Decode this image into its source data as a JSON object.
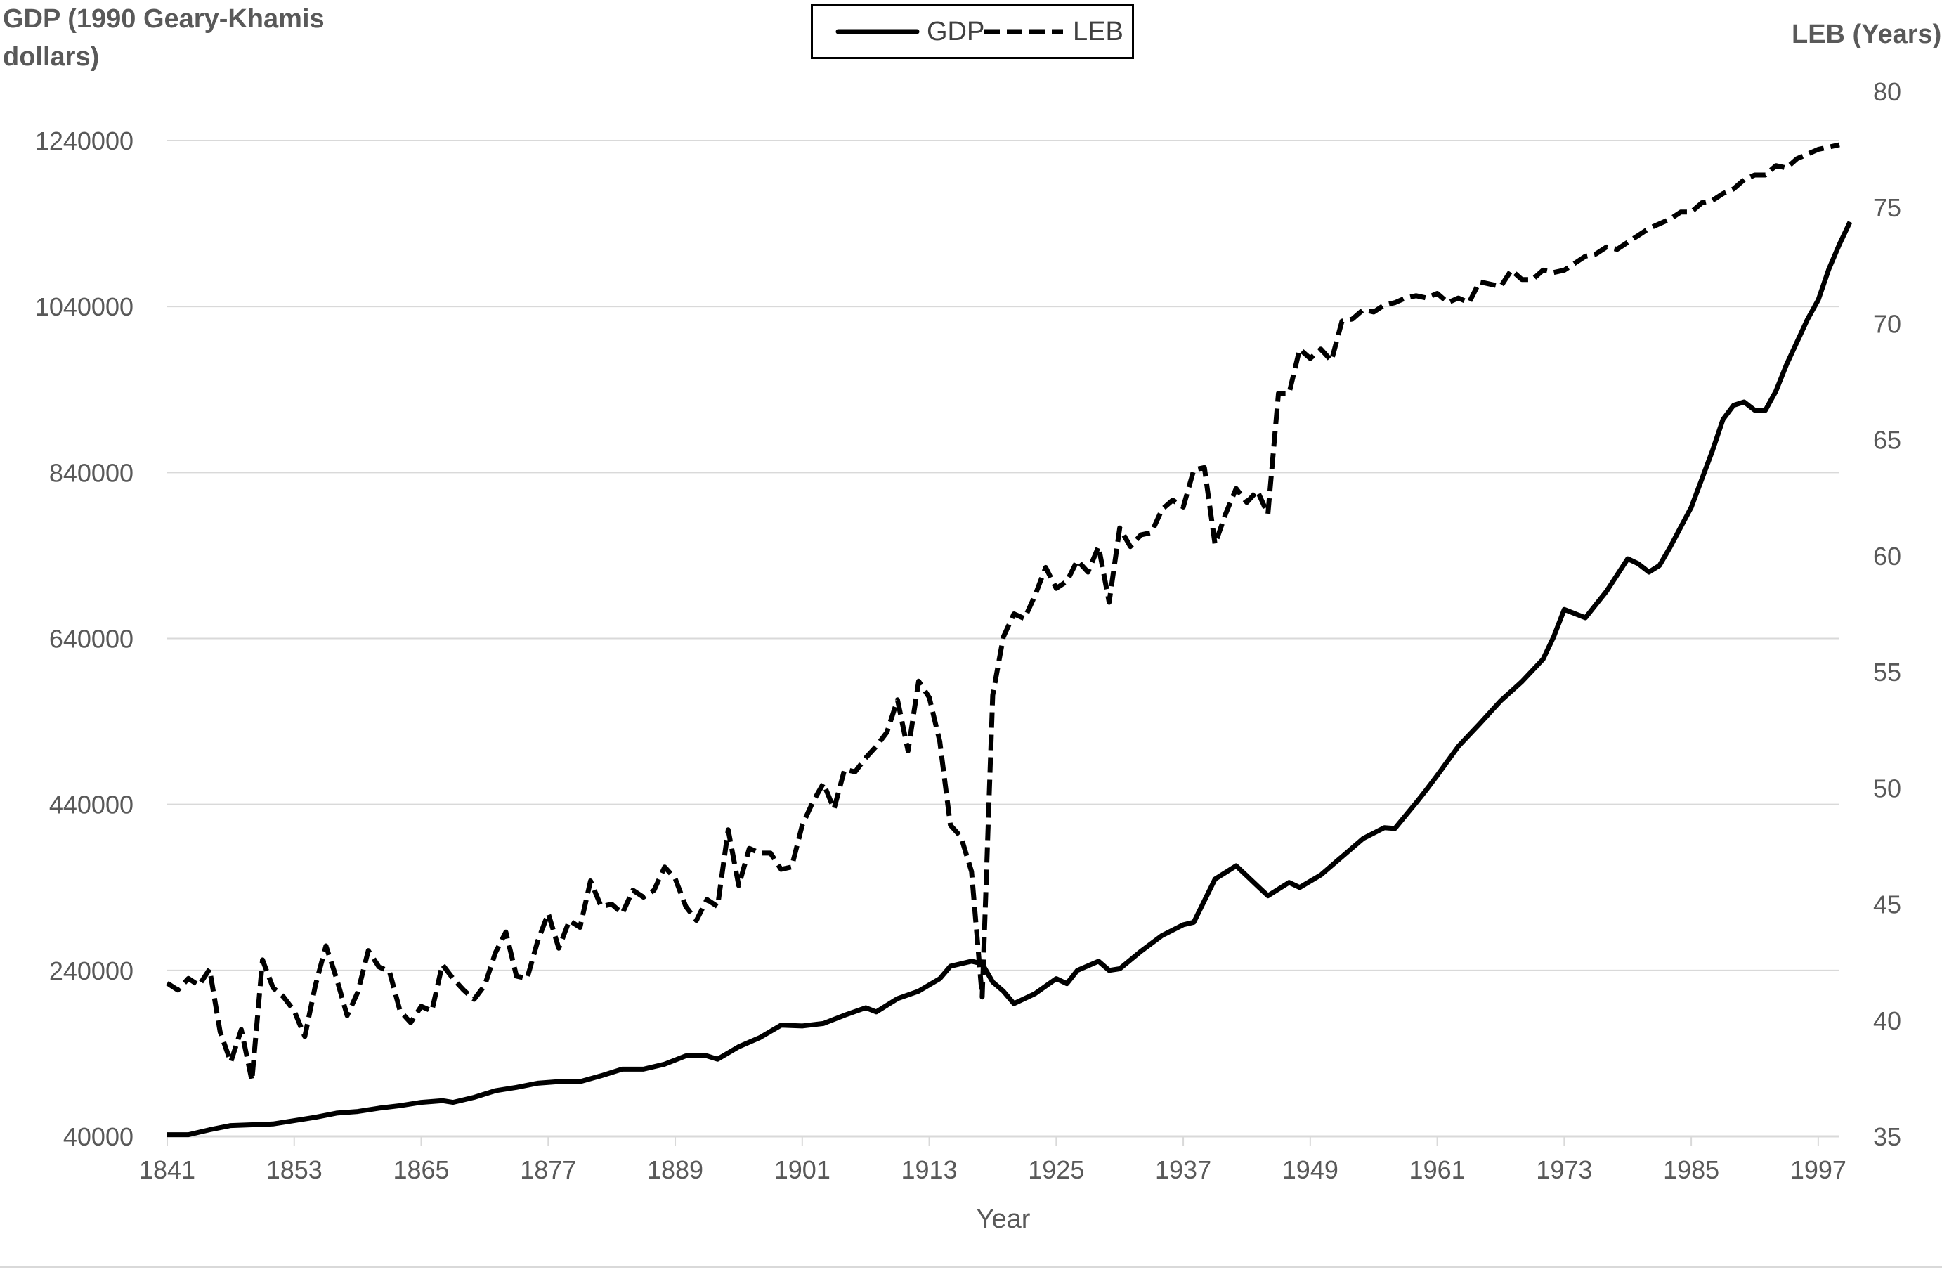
{
  "chart_data": {
    "type": "line",
    "x_label": "Year",
    "y_left_label": "GDP (1990 Geary-Khamis dollars)",
    "y_right_label": "LEB (Years)",
    "x_range": [
      1841,
      1999
    ],
    "x_ticks": [
      "1841",
      "1853",
      "1865",
      "1877",
      "1889",
      "1901",
      "1913",
      "1925",
      "1937",
      "1949",
      "1961",
      "1973",
      "1985",
      "1997"
    ],
    "y_left_range": [
      40000,
      1240000
    ],
    "y_left_ticks": [
      "40000",
      "240000",
      "440000",
      "640000",
      "840000",
      "1040000",
      "1240000"
    ],
    "y_right_range": [
      35,
      80
    ],
    "y_right_ticks": [
      "35",
      "40",
      "45",
      "50",
      "55",
      "60",
      "65",
      "70",
      "75",
      "80"
    ],
    "grid": "horizontal",
    "legend": "top-center",
    "series": [
      {
        "name": "GDP",
        "axis": "left",
        "style": "solid",
        "color": "#000000",
        "points": [
          [
            1841,
            42000
          ],
          [
            1843,
            42000
          ],
          [
            1845,
            48000
          ],
          [
            1847,
            53000
          ],
          [
            1849,
            54000
          ],
          [
            1851,
            55000
          ],
          [
            1853,
            59000
          ],
          [
            1855,
            63000
          ],
          [
            1857,
            68000
          ],
          [
            1859,
            70000
          ],
          [
            1861,
            74000
          ],
          [
            1863,
            77000
          ],
          [
            1865,
            81000
          ],
          [
            1867,
            83000
          ],
          [
            1868,
            81000
          ],
          [
            1870,
            87000
          ],
          [
            1872,
            95000
          ],
          [
            1874,
            99000
          ],
          [
            1876,
            104000
          ],
          [
            1878,
            106000
          ],
          [
            1880,
            106000
          ],
          [
            1882,
            113000
          ],
          [
            1884,
            121000
          ],
          [
            1886,
            121000
          ],
          [
            1888,
            127000
          ],
          [
            1890,
            137000
          ],
          [
            1892,
            137000
          ],
          [
            1893,
            133000
          ],
          [
            1895,
            148000
          ],
          [
            1897,
            159000
          ],
          [
            1899,
            174000
          ],
          [
            1901,
            173000
          ],
          [
            1903,
            176000
          ],
          [
            1905,
            186000
          ],
          [
            1907,
            195000
          ],
          [
            1908,
            190000
          ],
          [
            1910,
            206000
          ],
          [
            1912,
            215000
          ],
          [
            1914,
            230000
          ],
          [
            1915,
            245000
          ],
          [
            1917,
            251000
          ],
          [
            1918,
            248000
          ],
          [
            1919,
            226000
          ],
          [
            1920,
            215000
          ],
          [
            1921,
            200000
          ],
          [
            1923,
            212000
          ],
          [
            1925,
            230000
          ],
          [
            1926,
            224000
          ],
          [
            1927,
            240000
          ],
          [
            1929,
            251000
          ],
          [
            1930,
            240000
          ],
          [
            1931,
            242000
          ],
          [
            1933,
            263000
          ],
          [
            1935,
            282000
          ],
          [
            1937,
            295000
          ],
          [
            1938,
            298000
          ],
          [
            1940,
            350000
          ],
          [
            1942,
            366000
          ],
          [
            1944,
            342000
          ],
          [
            1945,
            330000
          ],
          [
            1947,
            346000
          ],
          [
            1948,
            340000
          ],
          [
            1950,
            355000
          ],
          [
            1952,
            377000
          ],
          [
            1954,
            399000
          ],
          [
            1956,
            412000
          ],
          [
            1957,
            411000
          ],
          [
            1959,
            442000
          ],
          [
            1960,
            458000
          ],
          [
            1961,
            475000
          ],
          [
            1963,
            510000
          ],
          [
            1965,
            537000
          ],
          [
            1967,
            565000
          ],
          [
            1969,
            588000
          ],
          [
            1971,
            615000
          ],
          [
            1972,
            642000
          ],
          [
            1973,
            675000
          ],
          [
            1975,
            665000
          ],
          [
            1977,
            697000
          ],
          [
            1979,
            736000
          ],
          [
            1980,
            730000
          ],
          [
            1981,
            720000
          ],
          [
            1982,
            728000
          ],
          [
            1983,
            750000
          ],
          [
            1985,
            798000
          ],
          [
            1987,
            866000
          ],
          [
            1988,
            904000
          ],
          [
            1989,
            921000
          ],
          [
            1990,
            925000
          ],
          [
            1991,
            915000
          ],
          [
            1992,
            915000
          ],
          [
            1993,
            938000
          ],
          [
            1994,
            970000
          ],
          [
            1996,
            1025000
          ],
          [
            1997,
            1048000
          ],
          [
            1998,
            1085000
          ],
          [
            1999,
            1115000
          ],
          [
            2000,
            1142000
          ]
        ]
      },
      {
        "name": "LEB",
        "axis": "right",
        "style": "dashed",
        "color": "#000000",
        "points": [
          [
            1841,
            41.6
          ],
          [
            1842,
            41.3
          ],
          [
            1843,
            41.8
          ],
          [
            1844,
            41.5
          ],
          [
            1845,
            42.2
          ],
          [
            1846,
            39.5
          ],
          [
            1847,
            38.2
          ],
          [
            1848,
            39.6
          ],
          [
            1849,
            37.4
          ],
          [
            1850,
            42.6
          ],
          [
            1851,
            41.4
          ],
          [
            1852,
            41.0
          ],
          [
            1853,
            40.4
          ],
          [
            1854,
            39.3
          ],
          [
            1855,
            41.5
          ],
          [
            1856,
            43.2
          ],
          [
            1857,
            41.8
          ],
          [
            1858,
            40.2
          ],
          [
            1859,
            41.2
          ],
          [
            1860,
            43.0
          ],
          [
            1861,
            42.3
          ],
          [
            1862,
            42.1
          ],
          [
            1863,
            40.4
          ],
          [
            1864,
            39.9
          ],
          [
            1865,
            40.6
          ],
          [
            1866,
            40.4
          ],
          [
            1867,
            42.4
          ],
          [
            1868,
            41.8
          ],
          [
            1869,
            41.3
          ],
          [
            1870,
            40.9
          ],
          [
            1871,
            41.5
          ],
          [
            1872,
            42.9
          ],
          [
            1873,
            43.8
          ],
          [
            1874,
            41.9
          ],
          [
            1875,
            41.8
          ],
          [
            1876,
            43.4
          ],
          [
            1877,
            44.6
          ],
          [
            1878,
            43.1
          ],
          [
            1879,
            44.3
          ],
          [
            1880,
            44.0
          ],
          [
            1881,
            46.0
          ],
          [
            1882,
            44.9
          ],
          [
            1883,
            45.0
          ],
          [
            1884,
            44.6
          ],
          [
            1885,
            45.6
          ],
          [
            1886,
            45.3
          ],
          [
            1887,
            45.6
          ],
          [
            1888,
            46.6
          ],
          [
            1889,
            46.1
          ],
          [
            1890,
            44.9
          ],
          [
            1891,
            44.3
          ],
          [
            1892,
            45.2
          ],
          [
            1893,
            44.9
          ],
          [
            1894,
            48.2
          ],
          [
            1895,
            45.8
          ],
          [
            1896,
            47.4
          ],
          [
            1897,
            47.2
          ],
          [
            1898,
            47.2
          ],
          [
            1899,
            46.5
          ],
          [
            1900,
            46.6
          ],
          [
            1901,
            48.4
          ],
          [
            1902,
            49.4
          ],
          [
            1903,
            50.2
          ],
          [
            1904,
            49.1
          ],
          [
            1905,
            50.8
          ],
          [
            1906,
            50.7
          ],
          [
            1907,
            51.3
          ],
          [
            1908,
            51.8
          ],
          [
            1909,
            52.4
          ],
          [
            1910,
            53.8
          ],
          [
            1911,
            51.6
          ],
          [
            1912,
            54.6
          ],
          [
            1913,
            53.9
          ],
          [
            1914,
            52.0
          ],
          [
            1915,
            48.4
          ],
          [
            1916,
            47.9
          ],
          [
            1917,
            46.4
          ],
          [
            1918,
            41.0
          ],
          [
            1919,
            54.0
          ],
          [
            1920,
            56.5
          ],
          [
            1921,
            57.5
          ],
          [
            1922,
            57.3
          ],
          [
            1923,
            58.3
          ],
          [
            1924,
            59.5
          ],
          [
            1925,
            58.6
          ],
          [
            1926,
            58.9
          ],
          [
            1927,
            59.8
          ],
          [
            1928,
            59.3
          ],
          [
            1929,
            60.4
          ],
          [
            1930,
            58.0
          ],
          [
            1931,
            61.2
          ],
          [
            1932,
            60.4
          ],
          [
            1933,
            60.9
          ],
          [
            1934,
            61.0
          ],
          [
            1935,
            62.0
          ],
          [
            1936,
            62.4
          ],
          [
            1937,
            62.1
          ],
          [
            1938,
            63.7
          ],
          [
            1939,
            63.8
          ],
          [
            1940,
            60.5
          ],
          [
            1941,
            61.8
          ],
          [
            1942,
            62.9
          ],
          [
            1943,
            62.3
          ],
          [
            1944,
            62.8
          ],
          [
            1945,
            61.8
          ],
          [
            1946,
            67.0
          ],
          [
            1947,
            67.0
          ],
          [
            1948,
            68.9
          ],
          [
            1949,
            68.5
          ],
          [
            1950,
            68.9
          ],
          [
            1951,
            68.4
          ],
          [
            1952,
            70.1
          ],
          [
            1953,
            70.2
          ],
          [
            1954,
            70.6
          ],
          [
            1955,
            70.5
          ],
          [
            1956,
            70.8
          ],
          [
            1957,
            70.9
          ],
          [
            1958,
            71.1
          ],
          [
            1959,
            71.2
          ],
          [
            1960,
            71.1
          ],
          [
            1961,
            71.3
          ],
          [
            1962,
            70.9
          ],
          [
            1963,
            71.1
          ],
          [
            1964,
            70.9
          ],
          [
            1965,
            71.8
          ],
          [
            1966,
            71.7
          ],
          [
            1967,
            71.6
          ],
          [
            1968,
            72.3
          ],
          [
            1969,
            71.9
          ],
          [
            1970,
            71.9
          ],
          [
            1971,
            72.3
          ],
          [
            1972,
            72.2
          ],
          [
            1973,
            72.3
          ],
          [
            1974,
            72.6
          ],
          [
            1975,
            72.9
          ],
          [
            1976,
            73.0
          ],
          [
            1977,
            73.3
          ],
          [
            1978,
            73.2
          ],
          [
            1979,
            73.5
          ],
          [
            1980,
            73.8
          ],
          [
            1981,
            74.1
          ],
          [
            1982,
            74.3
          ],
          [
            1983,
            74.5
          ],
          [
            1984,
            74.8
          ],
          [
            1985,
            74.8
          ],
          [
            1986,
            75.2
          ],
          [
            1987,
            75.3
          ],
          [
            1988,
            75.6
          ],
          [
            1989,
            75.8
          ],
          [
            1990,
            76.2
          ],
          [
            1991,
            76.4
          ],
          [
            1992,
            76.4
          ],
          [
            1993,
            76.8
          ],
          [
            1994,
            76.7
          ],
          [
            1995,
            77.1
          ],
          [
            1996,
            77.3
          ],
          [
            1997,
            77.5
          ],
          [
            1998,
            77.6
          ],
          [
            1999,
            77.7
          ]
        ]
      }
    ]
  }
}
